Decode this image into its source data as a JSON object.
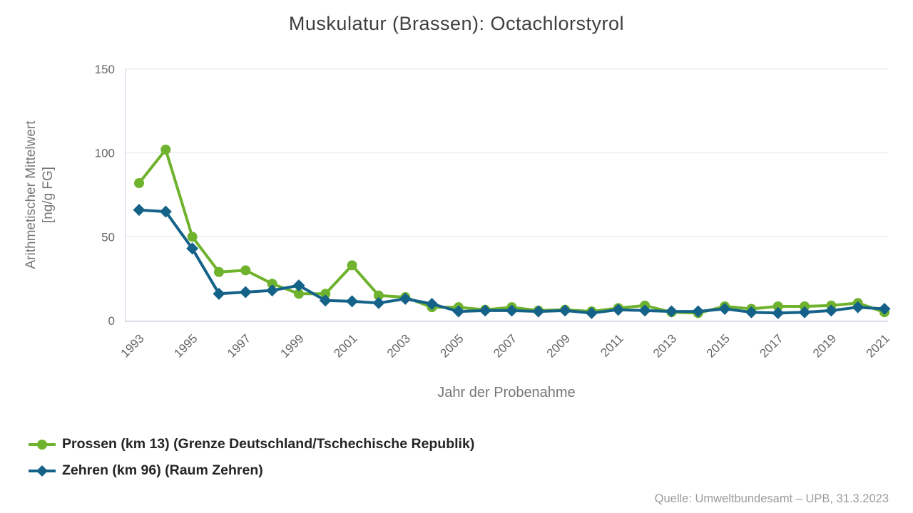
{
  "chart_data": {
    "type": "line",
    "title": "Muskulatur (Brassen): Octachlorstyrol",
    "xlabel": "Jahr der Probenahme",
    "ylabel": "Arithmetischer Mittelwert [ng/g FG]",
    "ylabel_lines": [
      "Arithmetischer Mittelwert",
      "[ng/g FG]"
    ],
    "source": "Quelle: Umweltbundesamt – UPB, 31.3.2023",
    "x": [
      1993,
      1994,
      1995,
      1996,
      1997,
      1998,
      1999,
      2000,
      2001,
      2002,
      2003,
      2004,
      2005,
      2006,
      2007,
      2008,
      2009,
      2010,
      2011,
      2012,
      2013,
      2014,
      2015,
      2016,
      2017,
      2018,
      2019,
      2020,
      2021
    ],
    "x_tick_labels": [
      "1993",
      "1995",
      "1997",
      "1999",
      "2001",
      "2003",
      "2005",
      "2007",
      "2009",
      "2011",
      "2013",
      "2015",
      "2017",
      "2019",
      "2021"
    ],
    "ylim": [
      0,
      150
    ],
    "yticks": [
      0,
      50,
      100,
      150
    ],
    "grid": "horizontal-major-gridlines",
    "legend_position": "bottom-left",
    "series": [
      {
        "name": "Prossen (km 13) (Grenze Deutschland/Tschechische Republik)",
        "color": "#6eb22d",
        "marker": "circle",
        "values": [
          82,
          102,
          50,
          29,
          30,
          22,
          16,
          16,
          33,
          15,
          14,
          8,
          8,
          6.5,
          8,
          6,
          6.5,
          5.5,
          7.5,
          9,
          5,
          4.5,
          8.5,
          7,
          8.5,
          8.5,
          9,
          10.5,
          5
        ]
      },
      {
        "name": "Zehren (km 96) (Raum Zehren)",
        "color": "#156289",
        "marker": "diamond",
        "values": [
          66,
          65,
          43,
          16,
          17,
          18,
          21,
          12,
          11.5,
          10.5,
          13,
          10,
          5.5,
          6,
          6,
          5.5,
          6,
          4.5,
          6.5,
          6,
          5.5,
          5.5,
          7,
          5,
          4.5,
          5,
          6,
          8,
          7
        ]
      }
    ],
    "colors": {
      "gridline": "#e6e6e6",
      "axis_line": "#ccd6eb",
      "tick_label": "#666666",
      "axis_title": "#777777",
      "title": "#3f3f3f",
      "legend_text": "#252525",
      "source_text": "#9b9b9b"
    }
  }
}
